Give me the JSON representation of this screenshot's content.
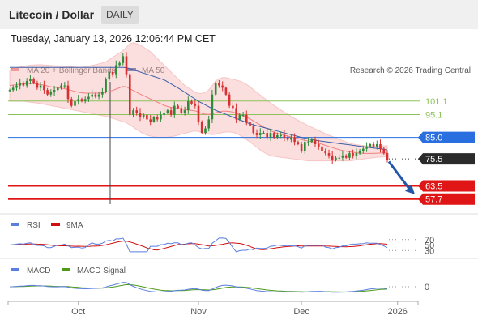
{
  "header": {
    "title": "Litecoin / Dollar",
    "timeframe": "DAILY",
    "timestamp": "Tuesday, January 13, 2026 12:06:44 PM CET"
  },
  "legend": {
    "ma20_bb": "MA 20 + Bollinger Bands",
    "ma50": "MA 50",
    "copyright": "Research © 2026 Trading Central"
  },
  "colors": {
    "up": "#2e8b3a",
    "down": "#d83030",
    "ma50": "#3a5fa8",
    "bollinger": "#f7b6b6",
    "resistance_green": "#8dc45a",
    "pivot_blue": "#2a6fe0",
    "support_red": "#e01515",
    "rsi": "#5b7fe0",
    "rsi_ma": "#d01010",
    "macd": "#5b7fe0",
    "macd_signal": "#4d9a1a"
  },
  "chart_data": [
    {
      "type": "candlestick",
      "name": "Litecoin / Dollar price",
      "x_ticks": [
        "Oct",
        "Nov",
        "Dec",
        "2026"
      ],
      "y_range": [
        54,
        110
      ],
      "levels": [
        {
          "label": "101.1",
          "value": 101.1,
          "kind": "resistance"
        },
        {
          "label": "95.1",
          "value": 95.1,
          "kind": "resistance"
        },
        {
          "label": "85.0",
          "value": 85.0,
          "kind": "pivot"
        },
        {
          "label": "75.5",
          "value": 75.5,
          "kind": "last"
        },
        {
          "label": "63.5",
          "value": 63.5,
          "kind": "support"
        },
        {
          "label": "57.7",
          "value": 57.7,
          "kind": "support"
        }
      ],
      "close": [
        106,
        107,
        108,
        109,
        108,
        110,
        111,
        109,
        107,
        108,
        106,
        104,
        105,
        106,
        107,
        108,
        108,
        102,
        99,
        101,
        102,
        101,
        102,
        103,
        104,
        103,
        104,
        105,
        111,
        114,
        113,
        117,
        118,
        121,
        113,
        95,
        97,
        96,
        94,
        95,
        93,
        92,
        94,
        93,
        95,
        96,
        97,
        95,
        99,
        98,
        96,
        97,
        101,
        100,
        99,
        92,
        87,
        89,
        93,
        104,
        109,
        108,
        107,
        104,
        99,
        98,
        93,
        95,
        95,
        92,
        90,
        87,
        86,
        87,
        87,
        85,
        87,
        85,
        86,
        86,
        85,
        84,
        85,
        83,
        82,
        79,
        83,
        83,
        84,
        82,
        81,
        79,
        78,
        77,
        75,
        76,
        76,
        77,
        76,
        78,
        77,
        78,
        79,
        80,
        81,
        82,
        81,
        82,
        80,
        78,
        75
      ],
      "ma50": [
        116,
        116,
        116,
        116,
        116,
        116,
        116,
        116,
        116,
        116,
        116,
        116,
        116,
        116,
        116,
        116,
        116,
        116,
        116,
        116,
        116,
        116,
        116,
        116,
        116,
        116,
        116,
        116,
        116,
        116,
        116,
        116,
        116,
        116,
        115.9,
        115.5,
        115,
        114.5,
        114,
        113.5,
        113,
        112.5,
        112,
        111.5,
        111,
        110.5,
        109.6,
        108.7,
        107.8,
        106.9,
        106,
        105,
        104,
        103,
        102,
        101,
        100.2,
        99.4,
        98.6,
        97.8,
        97,
        96.4,
        95.8,
        95.2,
        94.6,
        94,
        93.4,
        92.8,
        92.2,
        91.6,
        91,
        90.6,
        90.2,
        89.8,
        89.4,
        89,
        88.6,
        88.2,
        87.8,
        87.4,
        87,
        86.6,
        86.2,
        85.8,
        85.4,
        85,
        84.7,
        84.4,
        84.1,
        83.8,
        83.5,
        83.3,
        83.1,
        82.9,
        82.7,
        82.5,
        82.3,
        82.1,
        81.9,
        81.7,
        81.5,
        81.3,
        81.1,
        80.9,
        80.7,
        80.5,
        80.3,
        80.1,
        79.9,
        79.7,
        79.5
      ],
      "ma20": [
        108,
        108.2,
        108.4,
        108.6,
        108.7,
        108.8,
        108.9,
        108.8,
        108.6,
        108.4,
        108.2,
        107.8,
        107.4,
        107.2,
        107,
        106.8,
        106.6,
        106.2,
        105.8,
        105.4,
        105,
        104.8,
        104.6,
        104.6,
        104.6,
        104.6,
        104.6,
        104.8,
        105,
        105.4,
        105.8,
        106.4,
        107,
        107.6,
        107.4,
        106.5,
        105.8,
        105,
        104.2,
        103.5,
        102.8,
        102,
        101.3,
        100.6,
        99.9,
        99.2,
        98.7,
        98.3,
        98,
        97.8,
        97.6,
        97.4,
        97.2,
        97,
        96.8,
        96.2,
        95.6,
        95.3,
        95.2,
        95.4,
        95.9,
        96.3,
        96.6,
        96.6,
        96.5,
        96.2,
        95.7,
        95.2,
        94.6,
        94,
        93.2,
        92.3,
        91.4,
        90.5,
        89.6,
        88.8,
        88,
        87.3,
        86.8,
        86.4,
        86,
        85.6,
        85.2,
        84.9,
        84.5,
        84,
        83.7,
        83.4,
        83.1,
        82.8,
        82.4,
        82,
        81.5,
        81,
        80.5,
        80,
        79.6,
        79.2,
        78.9,
        78.6,
        78.4,
        78.2,
        78,
        77.9,
        77.9,
        77.9,
        77.9,
        78,
        78.1,
        78.1,
        78.1
      ],
      "bb_upper": [
        115,
        115.4,
        115.8,
        116.2,
        116.5,
        116.8,
        117,
        117.1,
        117.2,
        117.2,
        117.1,
        117,
        116.9,
        116.8,
        116.7,
        116.6,
        116.5,
        116.4,
        116.3,
        116.2,
        116.1,
        116,
        116.3,
        116.6,
        116.9,
        117.2,
        117.6,
        118,
        118.5,
        119.5,
        120.5,
        121.5,
        122.5,
        123.5,
        125,
        126.5,
        127,
        126.5,
        126,
        125,
        124,
        123,
        121.5,
        120,
        118.5,
        117,
        115.5,
        114,
        112.5,
        111,
        109.5,
        108,
        107,
        106,
        105,
        104.5,
        104.5,
        105,
        106,
        108,
        110,
        111,
        111.5,
        111.5,
        111.2,
        110.8,
        110.4,
        110,
        109.4,
        108.5,
        107.4,
        106.2,
        105,
        103.8,
        102.6,
        101.4,
        100.3,
        99.2,
        98.2,
        97.2,
        96.2,
        95.2,
        94.3,
        93.4,
        92.6,
        91.8,
        91,
        90.2,
        89.5,
        88.8,
        88.1,
        87.4,
        86.7,
        86,
        85.4,
        84.8,
        84.2,
        83.6,
        83,
        82.5,
        82.1,
        81.8,
        81.6,
        81.4,
        81.3,
        81.2,
        81.2,
        81.2,
        81.3,
        81.3,
        81.3
      ],
      "bb_lower": [
        101,
        101,
        101,
        101,
        101,
        100.8,
        100.6,
        100.4,
        100.2,
        100,
        99.7,
        99.4,
        99.1,
        98.8,
        98.5,
        98.2,
        97.9,
        97.6,
        97.3,
        97,
        96.7,
        96.4,
        96.1,
        95.8,
        95.5,
        95.2,
        94.9,
        94.6,
        94.3,
        94,
        93.5,
        93,
        92.5,
        92,
        91.5,
        90.5,
        89.5,
        88.5,
        87.5,
        86.6,
        86,
        85.6,
        85.3,
        85.1,
        85,
        85,
        85.1,
        85.3,
        85.6,
        86,
        86.4,
        86.8,
        87.2,
        87.6,
        87.8,
        87.6,
        87.2,
        86.8,
        86.4,
        86.2,
        86.4,
        86.8,
        87.2,
        87.4,
        87.4,
        87.2,
        86.8,
        86,
        85,
        84,
        83,
        81.8,
        80.6,
        79.4,
        78.4,
        77.6,
        77,
        76.6,
        76.4,
        76.2,
        76,
        75.8,
        75.6,
        75.4,
        75.2,
        75,
        74.8,
        74.6,
        74.6,
        74.6,
        74.6,
        74.6,
        74.6,
        74.6,
        74.6,
        74.6,
        74.6,
        74.6,
        74.6,
        74.6,
        74.8,
        75,
        75.2,
        75.4,
        75.6,
        75.8,
        76,
        76.2,
        76.3,
        76.4,
        76.5
      ]
    },
    {
      "type": "line",
      "name": "RSI",
      "series_labels": [
        "RSI",
        "9MA"
      ],
      "levels": [
        {
          "label": "70",
          "value": 70
        },
        {
          "label": "50",
          "value": 50
        },
        {
          "label": "30",
          "value": 30
        }
      ],
      "y_range": [
        10,
        90
      ]
    },
    {
      "type": "line",
      "name": "MACD",
      "series_labels": [
        "MACD",
        "MACD Signal"
      ],
      "levels": [
        {
          "label": "0",
          "value": 0
        }
      ],
      "y_range": [
        -8,
        8
      ]
    }
  ]
}
